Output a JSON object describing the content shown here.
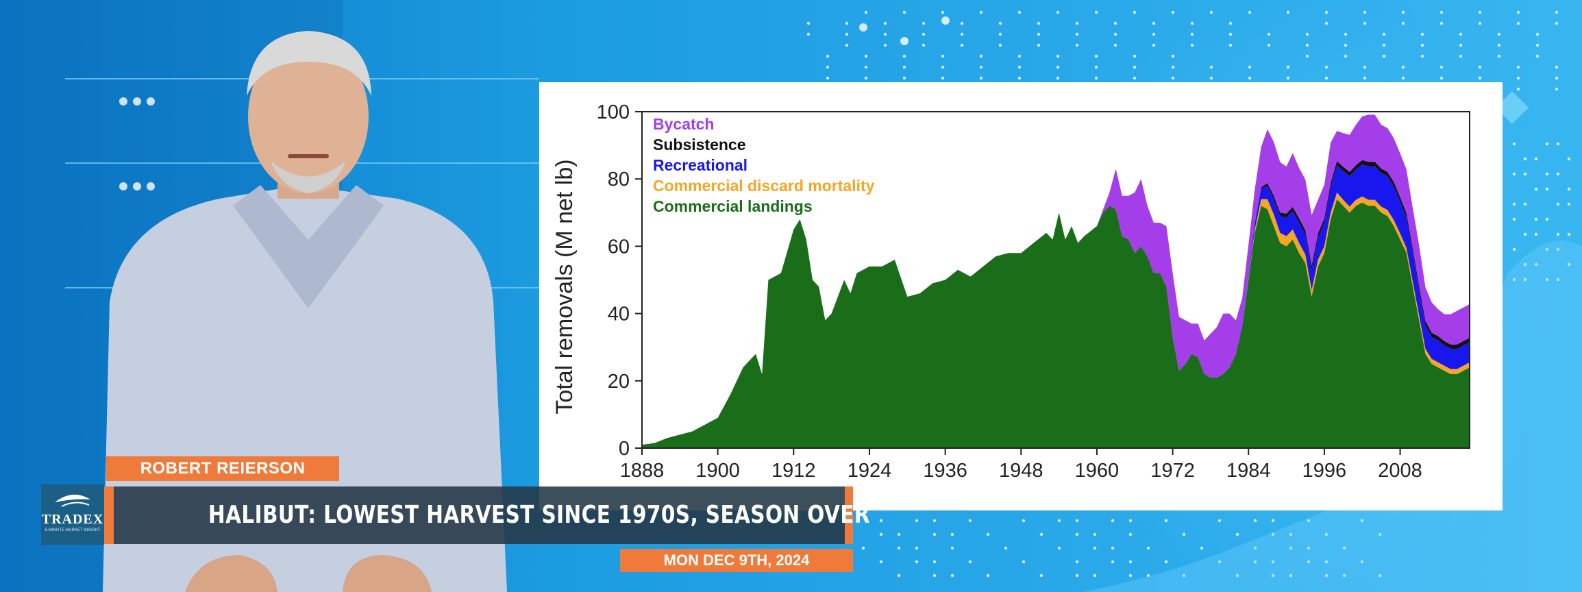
{
  "presenter": {
    "name": "ROBERT REIERSON"
  },
  "headline": "HALIBUT: LOWEST HARVEST SINCE 1970S, SEASON OVER",
  "date": "MON DEC 9TH, 2024",
  "logo": {
    "name": "TRADEX",
    "tagline": "5-MINUTE MARKET INSIGHT"
  },
  "colors": {
    "accent": "#ef7a3a",
    "headline_bg": "#23374680",
    "background": "#1c9ce0"
  },
  "chart_data": {
    "type": "area",
    "stacked": true,
    "ylabel": "Total removals (M net lb)",
    "xlabel": "",
    "xlim": [
      1888,
      2019
    ],
    "ylim": [
      0,
      100
    ],
    "x_ticks": [
      1888,
      1900,
      1912,
      1924,
      1936,
      1948,
      1960,
      1972,
      1984,
      1996,
      2008
    ],
    "y_ticks": [
      0,
      20,
      40,
      60,
      80,
      100
    ],
    "legend_position": "top-left",
    "x": [
      1888,
      1890,
      1892,
      1894,
      1896,
      1898,
      1900,
      1902,
      1904,
      1906,
      1907,
      1908,
      1910,
      1912,
      1913,
      1914,
      1915,
      1916,
      1917,
      1918,
      1920,
      1921,
      1922,
      1924,
      1926,
      1928,
      1930,
      1932,
      1934,
      1936,
      1938,
      1940,
      1942,
      1944,
      1946,
      1948,
      1950,
      1952,
      1953,
      1954,
      1955,
      1956,
      1957,
      1958,
      1960,
      1961,
      1962,
      1963,
      1964,
      1965,
      1966,
      1967,
      1968,
      1969,
      1970,
      1971,
      1972,
      1973,
      1974,
      1975,
      1976,
      1977,
      1978,
      1979,
      1980,
      1981,
      1982,
      1983,
      1984,
      1985,
      1986,
      1987,
      1988,
      1989,
      1990,
      1991,
      1992,
      1993,
      1994,
      1995,
      1996,
      1997,
      1998,
      1999,
      2000,
      2001,
      2002,
      2003,
      2004,
      2005,
      2006,
      2007,
      2008,
      2009,
      2010,
      2011,
      2012,
      2013,
      2014,
      2015,
      2016,
      2017,
      2018,
      2019
    ],
    "series": [
      {
        "name": "Commercial landings",
        "color": "#1a6e1a",
        "values": [
          1,
          1.5,
          3,
          4,
          5,
          7,
          9,
          16,
          24,
          28,
          22,
          50,
          52,
          65,
          68,
          62,
          50,
          48,
          38,
          40,
          50,
          46,
          52,
          54,
          54,
          56,
          45,
          46,
          49,
          50,
          53,
          51,
          54,
          57,
          58,
          58,
          61,
          64,
          62,
          70,
          62,
          66,
          61,
          63,
          66,
          70,
          72,
          71,
          63,
          62,
          58,
          60,
          57,
          52,
          52,
          48,
          33,
          23,
          25,
          28,
          27,
          22,
          21,
          21,
          22,
          24,
          28,
          36,
          50,
          64,
          72,
          71,
          66,
          61,
          60,
          62,
          58,
          55,
          45,
          54,
          58,
          68,
          74,
          72,
          70,
          72,
          73,
          72,
          72,
          70,
          69,
          66,
          62,
          58,
          48,
          38,
          28,
          25,
          24,
          23,
          22,
          22,
          23,
          24
        ]
      },
      {
        "name": "Commercial discard mortality",
        "color": "#f5a623",
        "values": [
          0,
          0,
          0,
          0,
          0,
          0,
          0,
          0,
          0,
          0,
          0,
          0,
          0,
          0,
          0,
          0,
          0,
          0,
          0,
          0,
          0,
          0,
          0,
          0,
          0,
          0,
          0,
          0,
          0,
          0,
          0,
          0,
          0,
          0,
          0,
          0,
          0,
          0,
          0,
          0,
          0,
          0,
          0,
          0,
          0,
          0,
          0,
          0,
          0,
          0,
          0,
          0,
          0,
          0,
          0,
          0,
          0,
          0,
          0,
          0,
          0,
          0,
          0,
          0,
          0,
          0,
          0,
          0,
          0.5,
          1,
          2,
          3,
          3.5,
          3,
          3,
          3,
          3,
          2.5,
          2,
          2,
          2,
          2,
          2,
          1.8,
          1.8,
          1.8,
          1.8,
          1.8,
          1.8,
          1.8,
          1.8,
          1.8,
          1.8,
          1.5,
          1.5,
          1.5,
          1.5,
          1.5,
          1.5,
          1.5,
          1.5,
          1.5,
          1.5,
          1.5
        ]
      },
      {
        "name": "Recreational",
        "color": "#1818ee",
        "values": [
          0,
          0,
          0,
          0,
          0,
          0,
          0,
          0,
          0,
          0,
          0,
          0,
          0,
          0,
          0,
          0,
          0,
          0,
          0,
          0,
          0,
          0,
          0,
          0,
          0,
          0,
          0,
          0,
          0,
          0,
          0,
          0,
          0,
          0,
          0,
          0,
          0,
          0,
          0,
          0,
          0,
          0,
          0,
          0,
          0,
          0,
          0,
          0,
          0,
          0,
          0,
          0,
          0,
          0,
          0,
          0,
          0,
          0,
          0,
          0,
          0,
          0,
          0,
          0,
          0,
          0,
          0,
          0.5,
          1,
          2,
          3,
          4,
          4.5,
          5,
          5.5,
          5.5,
          6,
          6,
          6,
          6.5,
          7,
          7.5,
          8,
          8.5,
          9,
          9,
          9.5,
          10,
          10,
          10,
          10,
          10,
          9.5,
          9,
          8.5,
          7.5,
          7,
          6.5,
          6.5,
          6,
          6,
          6,
          6,
          6
        ]
      },
      {
        "name": "Subsistence",
        "color": "#111111",
        "values": [
          0,
          0,
          0,
          0,
          0,
          0,
          0,
          0,
          0,
          0,
          0,
          0,
          0,
          0,
          0,
          0,
          0,
          0,
          0,
          0,
          0,
          0,
          0,
          0,
          0,
          0,
          0,
          0,
          0,
          0,
          0,
          0,
          0,
          0,
          0,
          0,
          0,
          0,
          0,
          0,
          0,
          0,
          0,
          0,
          0,
          0,
          0,
          0,
          0,
          0,
          0,
          0,
          0,
          0,
          0,
          0,
          0,
          0,
          0,
          0,
          0,
          0,
          0,
          0,
          0,
          0,
          0,
          0,
          0,
          0,
          0.5,
          0.8,
          1,
          1,
          1.2,
          1.2,
          1.3,
          1.3,
          1.3,
          1.3,
          1.3,
          1.3,
          1.3,
          1.3,
          1.3,
          1.3,
          1.3,
          1.3,
          1.3,
          1.3,
          1.3,
          1.3,
          1.3,
          1.3,
          1.3,
          1.3,
          1.3,
          1.3,
          1.3,
          1.3,
          1.3,
          1.3,
          1.3,
          1.3
        ]
      },
      {
        "name": "Bycatch",
        "color": "#a43ee8",
        "values": [
          0,
          0,
          0,
          0,
          0,
          0,
          0,
          0,
          0,
          0,
          0,
          0,
          0,
          0,
          0,
          0,
          0,
          0,
          0,
          0,
          0,
          0,
          0,
          0,
          0,
          0,
          0,
          0,
          0,
          0,
          0,
          0,
          0,
          0,
          0,
          0,
          0,
          0,
          0,
          0,
          0,
          0,
          0,
          0,
          0,
          1,
          4,
          12,
          12,
          13,
          18,
          20,
          15,
          15,
          15,
          18,
          19,
          16,
          13,
          9,
          10,
          10,
          13,
          15,
          18,
          16,
          10,
          8,
          9,
          10,
          12,
          16,
          16,
          15,
          14,
          16,
          15,
          15,
          15,
          10,
          10,
          12,
          9,
          10,
          11,
          12,
          13,
          14,
          14,
          13,
          13,
          13,
          13,
          13,
          12,
          12,
          10,
          9,
          8,
          8,
          9,
          10,
          10,
          10
        ]
      }
    ],
    "legend": [
      "Bycatch",
      "Subsistence",
      "Recreational",
      "Commercial discard mortality",
      "Commercial landings"
    ]
  }
}
